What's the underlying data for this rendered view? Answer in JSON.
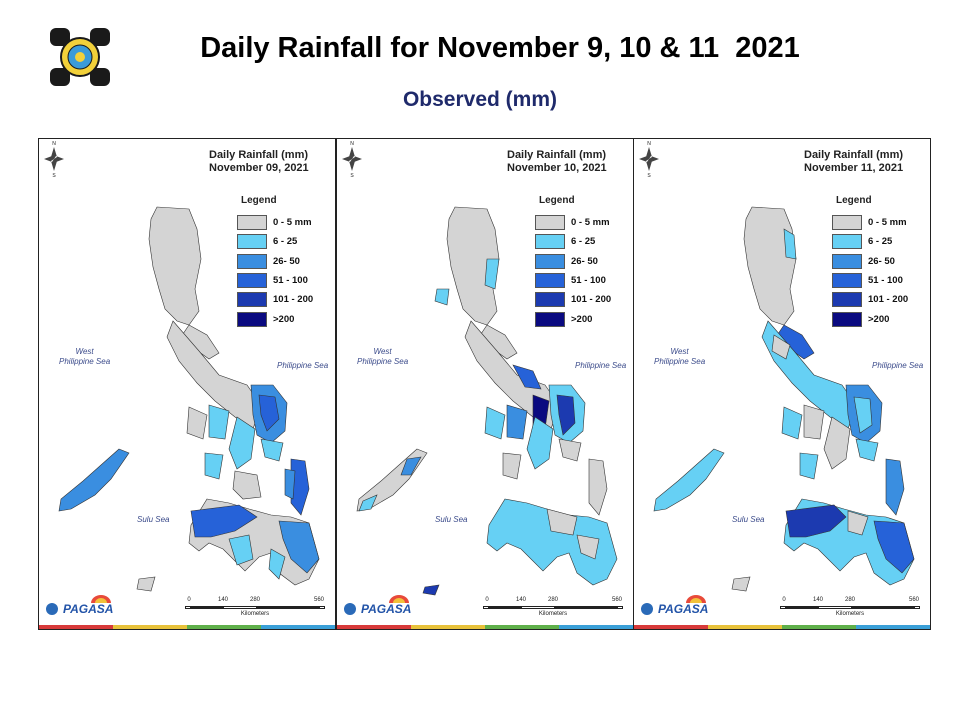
{
  "header": {
    "title": "Daily Rainfall for November 9, 10 & 11  2021",
    "subtitle": "Observed (mm)",
    "logo_icon": "agency-seal-icon"
  },
  "legend": {
    "title": "Legend",
    "classes": [
      {
        "label": "0 - 5 mm",
        "color": "#d4d4d4"
      },
      {
        "label": "6 - 25",
        "color": "#66d0f4"
      },
      {
        "label": "26- 50",
        "color": "#3a8ee0"
      },
      {
        "label": "51 - 100",
        "color": "#2662d8"
      },
      {
        "label": "101 - 200",
        "color": "#1c3ab0"
      },
      {
        "label": ">200",
        "color": "#0a0a80"
      }
    ]
  },
  "seas": {
    "west": "West\nPhilippine Sea",
    "east": "Philippine Sea",
    "south": "Sulu Sea"
  },
  "scale_bar": {
    "ticks": [
      "0",
      "140",
      "280",
      "560"
    ],
    "unit": "Kilometers"
  },
  "compass": {
    "north": "N",
    "south": "S",
    "west": "W",
    "east": "E"
  },
  "brand": {
    "name": "PAGASA",
    "icon": "pagasa-logo-icon"
  },
  "panels": [
    {
      "title": "Daily Rainfall (mm)",
      "date": "November 09, 2021"
    },
    {
      "title": "Daily Rainfall (mm)",
      "date": "November 10, 2021"
    },
    {
      "title": "Daily Rainfall (mm)",
      "date": "November 11, 2021"
    }
  ],
  "colors": {
    "land_base": "#d4d4d4",
    "strip": [
      "#d83a3a",
      "#e8c23a",
      "#5fb04a",
      "#3aa0d8"
    ]
  }
}
